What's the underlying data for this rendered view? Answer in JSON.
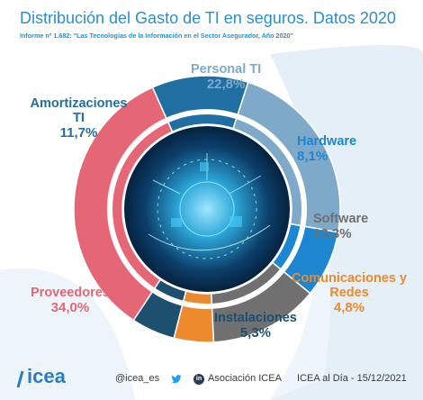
{
  "header": {
    "title": "Distribución del Gasto de TI en seguros. Datos 2020",
    "subtitle": "Informe nº 1.682: \"Las Tecnologías de la Información en el Sector Asegurador, Año 2020\""
  },
  "footer": {
    "brand": "ICEA",
    "twitter": "@icea_es",
    "linkedin": "Asociación ICEA",
    "source": "ICEA al Día - 15/12/2021"
  },
  "chart_data": {
    "type": "pie",
    "donut": true,
    "categories": [
      "Personal TI",
      "Hardware",
      "Software",
      "Comunicaciones y Redes",
      "Instalaciones",
      "Proveedores",
      "Amortizaciones TI"
    ],
    "values": [
      22.8,
      8.1,
      13.3,
      4.8,
      5.3,
      34.0,
      11.7
    ],
    "value_labels": [
      "22,8%",
      "8,1%",
      "13,3%",
      "4,8%",
      "5,3%",
      "34,0%",
      "11,7%"
    ],
    "colors": [
      "#7fa9c9",
      "#1c86d0",
      "#707070",
      "#ed8a2d",
      "#1d4f6e",
      "#e56675",
      "#1f6fa3"
    ],
    "label_colors": [
      "#7fa9c9",
      "#1c86d0",
      "#707070",
      "#ed8a2d",
      "#1d4f6e",
      "#e56675",
      "#1f6fa3"
    ],
    "start_angle_deg": -72
  }
}
